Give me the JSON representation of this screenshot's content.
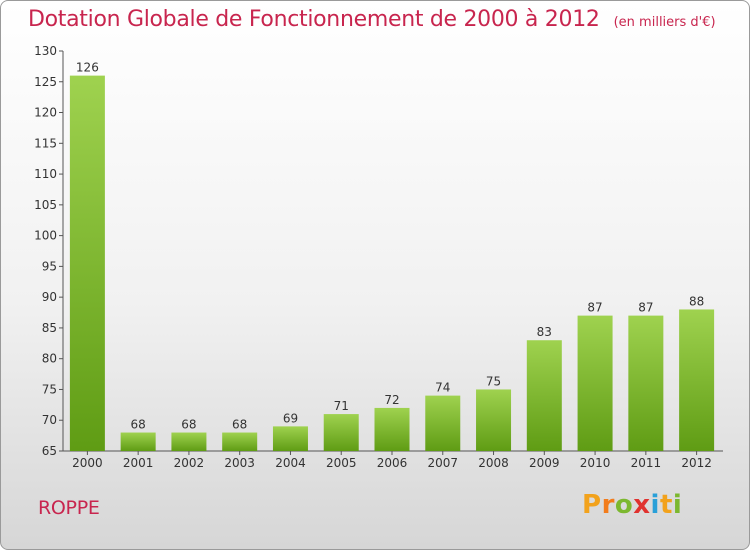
{
  "header": {
    "title": "Dotation Globale de Fonctionnement de 2000 à 2012",
    "unit": "(en milliers d'€)"
  },
  "footer": {
    "commune": "ROPPE",
    "logo_letters": [
      "P",
      "r",
      "o",
      "x",
      "i",
      "t",
      "i"
    ]
  },
  "colors": {
    "title": "#c8254e",
    "bar_light": "#9fd24f",
    "bar_dark": "#5f9c14"
  },
  "chart_data": {
    "type": "bar",
    "title": "Dotation Globale de Fonctionnement de 2000 à 2012",
    "subtitle": "(en milliers d'€)",
    "xlabel": "",
    "ylabel": "",
    "categories": [
      "2000",
      "2001",
      "2002",
      "2003",
      "2004",
      "2005",
      "2006",
      "2007",
      "2008",
      "2009",
      "2010",
      "2011",
      "2012"
    ],
    "values": [
      126,
      68,
      68,
      68,
      69,
      71,
      72,
      74,
      75,
      83,
      87,
      87,
      88
    ],
    "ylim": [
      65,
      130
    ],
    "yticks": [
      65,
      70,
      75,
      80,
      85,
      90,
      95,
      100,
      105,
      110,
      115,
      120,
      125,
      130
    ],
    "grid": false,
    "legend": "none"
  }
}
